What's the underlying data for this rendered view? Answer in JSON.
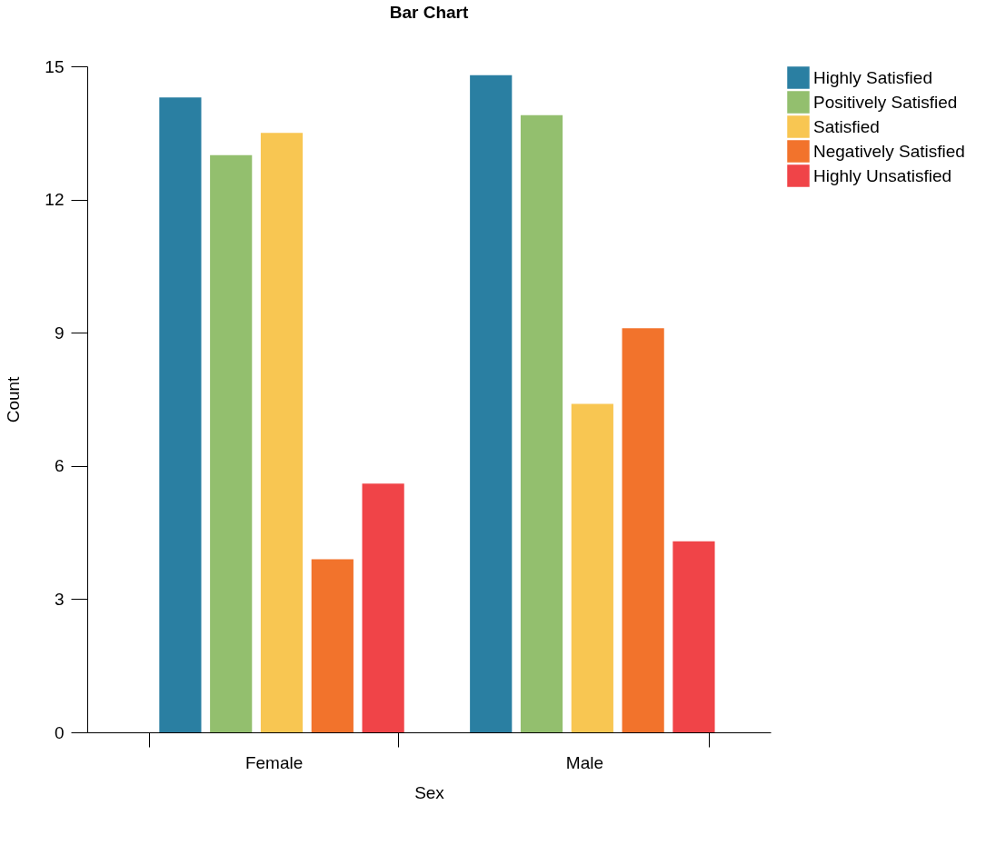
{
  "chart_data": {
    "type": "bar",
    "title": "Bar Chart",
    "xlabel": "Sex",
    "ylabel": "Count",
    "categories": [
      "Female",
      "Male"
    ],
    "series": [
      {
        "name": "Highly Satisfied",
        "color": "#2a7fa2",
        "values": [
          14.3,
          14.8
        ]
      },
      {
        "name": "Positively Satisfied",
        "color": "#93bf6e",
        "values": [
          13.0,
          13.9
        ]
      },
      {
        "name": "Satisfied",
        "color": "#f8c652",
        "values": [
          13.5,
          7.4
        ]
      },
      {
        "name": "Negatively Satisfied",
        "color": "#f2732c",
        "values": [
          3.9,
          9.1
        ]
      },
      {
        "name": "Highly Unsatisfied",
        "color": "#f04448",
        "values": [
          5.6,
          4.3
        ]
      }
    ],
    "ylim": [
      0,
      15
    ],
    "yticks": [
      0,
      3,
      6,
      9,
      12,
      15
    ],
    "grid": false,
    "legend": "top right"
  }
}
